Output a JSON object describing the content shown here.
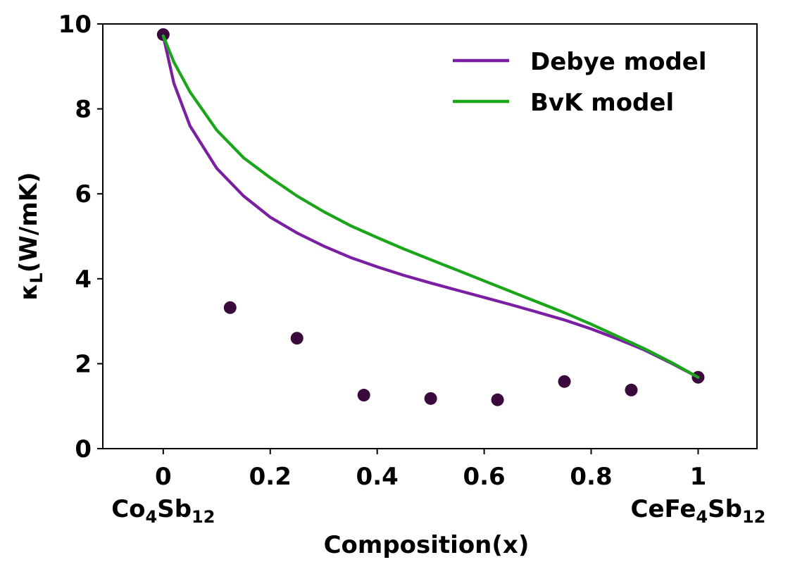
{
  "chart_data": {
    "type": "line",
    "xlabel": "Composition(x)",
    "ylabel_main": "κ",
    "ylabel_sub": "L",
    "ylabel_rest": "(W/mK)",
    "xlim": [
      -0.113,
      1.11
    ],
    "ylim": [
      0,
      10
    ],
    "x_ticks": [
      0,
      0.2,
      0.4,
      0.6,
      0.8,
      1
    ],
    "x_tick_labels": [
      "0",
      "0.2",
      "0.4",
      "0.6",
      "0.8",
      "1"
    ],
    "y_ticks": [
      0,
      2,
      4,
      6,
      8,
      10
    ],
    "y_tick_labels": [
      "0",
      "2",
      "4",
      "6",
      "8",
      "10"
    ],
    "endpoint_labels": {
      "left": {
        "x": 0,
        "parts": [
          [
            "Co",
            ""
          ],
          [
            "4",
            "sub"
          ],
          [
            "Sb",
            ""
          ],
          [
            "12",
            "sub"
          ]
        ]
      },
      "right": {
        "x": 1,
        "parts": [
          [
            "CeFe",
            ""
          ],
          [
            "4",
            "sub"
          ],
          [
            "Sb",
            ""
          ],
          [
            "12",
            "sub"
          ]
        ]
      }
    },
    "legend_position": "top-right",
    "grid": false,
    "series": [
      {
        "name": "Debye model",
        "kind": "line",
        "color": "#7b1fa2",
        "x": [
          0,
          0.02,
          0.05,
          0.1,
          0.15,
          0.2,
          0.25,
          0.3,
          0.35,
          0.4,
          0.45,
          0.5,
          0.55,
          0.6,
          0.65,
          0.7,
          0.75,
          0.8,
          0.85,
          0.9,
          0.95,
          1.0
        ],
        "y": [
          9.72,
          8.6,
          7.6,
          6.6,
          5.95,
          5.45,
          5.08,
          4.77,
          4.5,
          4.28,
          4.08,
          3.9,
          3.73,
          3.56,
          3.39,
          3.21,
          3.03,
          2.82,
          2.58,
          2.32,
          2.01,
          1.68
        ]
      },
      {
        "name": "BvK model",
        "kind": "line",
        "color": "#1aa51a",
        "x": [
          0,
          0.02,
          0.05,
          0.1,
          0.15,
          0.2,
          0.25,
          0.3,
          0.35,
          0.4,
          0.45,
          0.5,
          0.55,
          0.6,
          0.65,
          0.7,
          0.75,
          0.8,
          0.85,
          0.9,
          0.95,
          1.0
        ],
        "y": [
          9.72,
          9.1,
          8.4,
          7.5,
          6.85,
          6.38,
          5.95,
          5.58,
          5.25,
          4.97,
          4.7,
          4.45,
          4.2,
          3.95,
          3.7,
          3.45,
          3.2,
          2.93,
          2.64,
          2.35,
          2.03,
          1.68
        ]
      },
      {
        "name": "",
        "kind": "scatter",
        "color": "#3a0a3c",
        "x": [
          0,
          0.125,
          0.25,
          0.375,
          0.5,
          0.625,
          0.75,
          0.875,
          1.0
        ],
        "y": [
          9.75,
          3.32,
          2.6,
          1.26,
          1.18,
          1.15,
          1.58,
          1.38,
          1.68
        ]
      }
    ]
  }
}
